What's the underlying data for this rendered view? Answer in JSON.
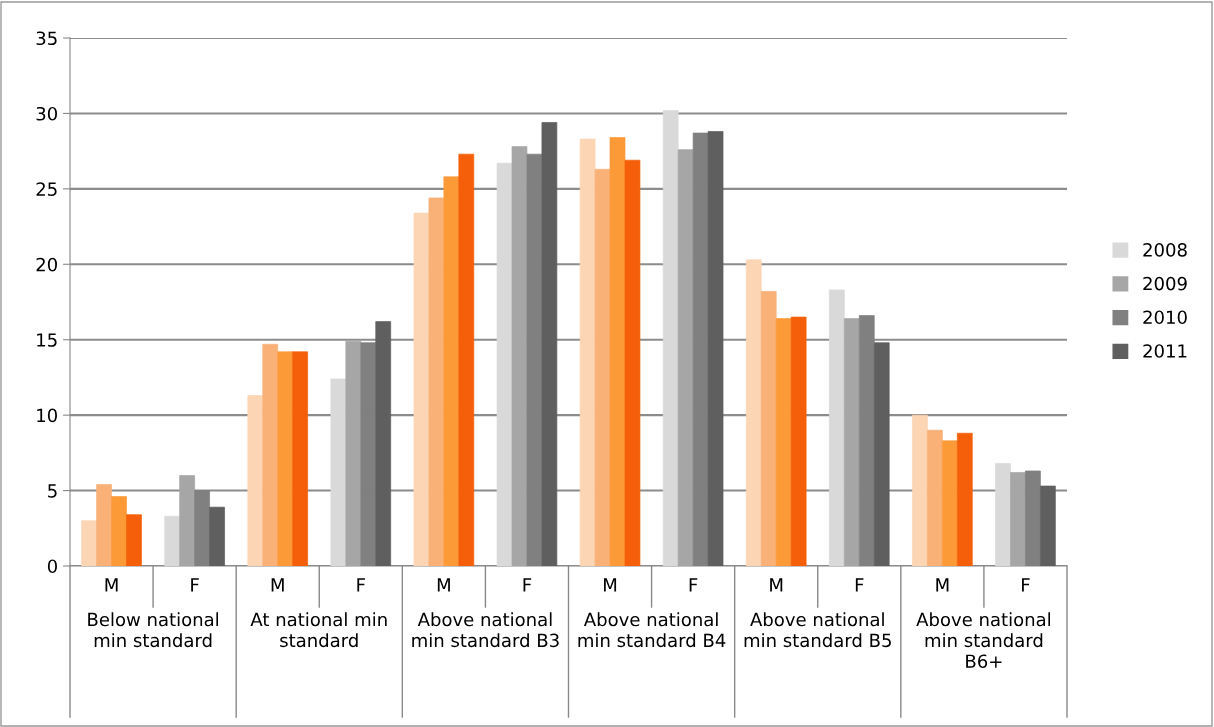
{
  "chart_data": {
    "type": "bar",
    "categories": [
      "M",
      "F",
      "M",
      "F",
      "M",
      "F",
      "M",
      "F",
      "M",
      "F",
      "M",
      "F"
    ],
    "annotations": [
      "Below national\nmin standard",
      "At national min\nstandard",
      "Above national\nmin standard B3",
      "Above national\nmin standard B4",
      "Above national\nmin standard B5",
      "Above national\nmin standard\nB6+"
    ],
    "series": [
      {
        "name": "2008",
        "color": "#d9d9d9",
        "colors": [
          "#fcd5b4",
          "#d9d9d9",
          "#fcd5b4",
          "#d9d9d9",
          "#fcd5b4",
          "#d9d9d9",
          "#fcd5b4",
          "#d9d9d9",
          "#fcd5b4",
          "#d9d9d9",
          "#fcd5b4",
          "#d9d9d9"
        ],
        "values": [
          3.0,
          3.3,
          11.3,
          12.4,
          23.4,
          26.7,
          28.3,
          30.2,
          20.3,
          18.3,
          10.0,
          6.8
        ]
      },
      {
        "name": "2009",
        "color": "#a6a6a6",
        "colors": [
          "#f9b178",
          "#a6a6a6",
          "#f9b178",
          "#a6a6a6",
          "#f9b178",
          "#a6a6a6",
          "#f9b178",
          "#a6a6a6",
          "#f9b178",
          "#a6a6a6",
          "#f9b178",
          "#a6a6a6"
        ],
        "values": [
          5.4,
          6.0,
          14.7,
          14.9,
          24.4,
          27.8,
          26.3,
          27.6,
          18.2,
          16.4,
          9.0,
          6.2
        ]
      },
      {
        "name": "2010",
        "color": "#808080",
        "colors": [
          "#fd9a38",
          "#808080",
          "#fd9a38",
          "#808080",
          "#fd9a38",
          "#808080",
          "#fd9a38",
          "#808080",
          "#fd9a38",
          "#808080",
          "#fd9a38",
          "#808080"
        ],
        "values": [
          4.6,
          5.0,
          14.2,
          14.8,
          25.8,
          27.3,
          28.4,
          28.7,
          16.4,
          16.6,
          8.3,
          6.3
        ]
      },
      {
        "name": "2011",
        "color": "#5f5f5f",
        "colors": [
          "#f55f0a",
          "#5f5f5f",
          "#f55f0a",
          "#5f5f5f",
          "#f55f0a",
          "#5f5f5f",
          "#f55f0a",
          "#5f5f5f",
          "#f55f0a",
          "#5f5f5f",
          "#f55f0a",
          "#5f5f5f"
        ],
        "values": [
          3.4,
          3.9,
          14.2,
          16.2,
          27.3,
          29.4,
          26.9,
          28.8,
          16.5,
          14.8,
          8.8,
          5.3
        ]
      }
    ],
    "ylim": [
      0,
      35
    ],
    "yticks": [
      0,
      5,
      10,
      15,
      20,
      25,
      30,
      35
    ],
    "grid": "y",
    "legend": "right"
  }
}
